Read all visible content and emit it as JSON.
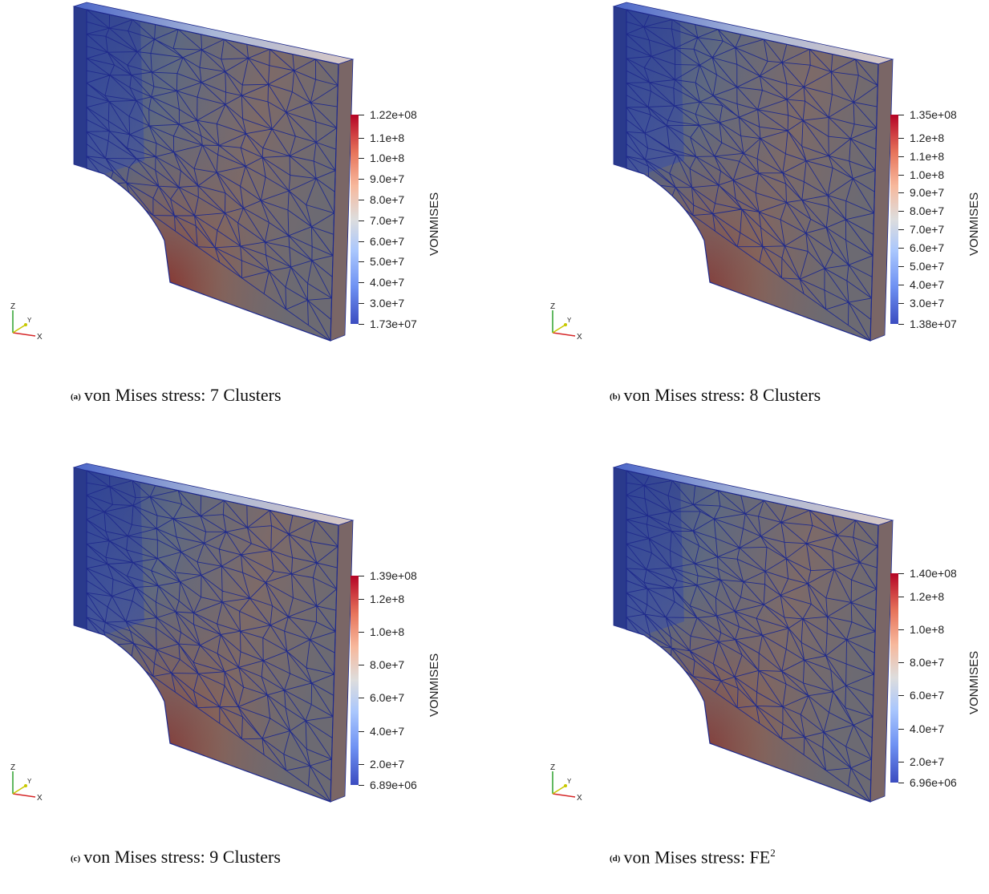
{
  "panels": [
    {
      "tag": "(a)",
      "caption": "von Mises stress: 7 Clusters",
      "caption_sup": "",
      "colorbar_title": "VONMISES",
      "max_label": "1.22e+08",
      "min_label": "1.73e+07",
      "ticks": [
        "1.1e+8",
        "1.0e+8",
        "9.0e+7",
        "8.0e+7",
        "7.0e+7",
        "6.0e+7",
        "5.0e+7",
        "4.0e+7",
        "3.0e+7"
      ],
      "axis_labels": {
        "z": "Z",
        "y": "Y",
        "x": "X"
      }
    },
    {
      "tag": "(b)",
      "caption": "von Mises stress: 8 Clusters",
      "caption_sup": "",
      "colorbar_title": "VONMISES",
      "max_label": "1.35e+08",
      "min_label": "1.38e+07",
      "ticks": [
        "1.2e+8",
        "1.1e+8",
        "1.0e+8",
        "9.0e+7",
        "8.0e+7",
        "7.0e+7",
        "6.0e+7",
        "5.0e+7",
        "4.0e+7",
        "3.0e+7"
      ],
      "axis_labels": {
        "z": "Z",
        "y": "Y",
        "x": "X"
      }
    },
    {
      "tag": "(c)",
      "caption": "von Mises stress: 9 Clusters",
      "caption_sup": "",
      "colorbar_title": "VONMISES",
      "max_label": "1.39e+08",
      "min_label": "6.89e+06",
      "ticks": [
        "1.2e+8",
        "1.0e+8",
        "8.0e+7",
        "6.0e+7",
        "4.0e+7",
        "2.0e+7"
      ],
      "axis_labels": {
        "z": "Z",
        "y": "Y",
        "x": "X"
      }
    },
    {
      "tag": "(d)",
      "caption": "von Mises stress: FE",
      "caption_sup": "2",
      "colorbar_title": "VONMISES",
      "max_label": "1.40e+08",
      "min_label": "6.96e+06",
      "ticks": [
        "1.2e+8",
        "1.0e+8",
        "8.0e+7",
        "6.0e+7",
        "4.0e+7",
        "2.0e+7"
      ],
      "axis_labels": {
        "z": "Z",
        "y": "Y",
        "x": "X"
      }
    }
  ],
  "colors": {
    "mesh_line": "#1f2a8c",
    "low": "#3b4cc0",
    "mid": "#dddddd",
    "high": "#b40426",
    "body": "#5a6578"
  }
}
